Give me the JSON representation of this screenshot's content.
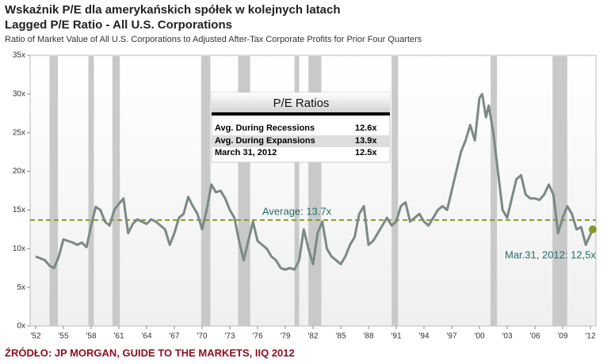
{
  "chart_data": {
    "type": "line",
    "title": "Wskaźnik P/E dla amerykańskich spółek w kolejnych latach",
    "subtitle": "Lagged P/E Ratio - All U.S. Corporations",
    "description": "Ratio of Market Value of All U.S. Corporations to Adjusted After-Tax Corporate Profits for Prior Four Quarters",
    "source": "ŹRÓDŁO: JP MORGAN, GUIDE TO THE MARKETS, IIQ 2012",
    "xlim": [
      1951.4,
      2012.6
    ],
    "ylim": [
      0,
      35
    ],
    "xticks": [
      {
        "value": 1952,
        "label": "'52"
      },
      {
        "value": 1955,
        "label": "'55"
      },
      {
        "value": 1958,
        "label": "'58"
      },
      {
        "value": 1961,
        "label": "'61"
      },
      {
        "value": 1964,
        "label": "'64"
      },
      {
        "value": 1967,
        "label": "'67"
      },
      {
        "value": 1970,
        "label": "'70"
      },
      {
        "value": 1973,
        "label": "'73"
      },
      {
        "value": 1976,
        "label": "'76"
      },
      {
        "value": 1979,
        "label": "'79"
      },
      {
        "value": 1982,
        "label": "'82"
      },
      {
        "value": 1985,
        "label": "'85"
      },
      {
        "value": 1988,
        "label": "'88"
      },
      {
        "value": 1991,
        "label": "'91"
      },
      {
        "value": 1994,
        "label": "'94"
      },
      {
        "value": 1997,
        "label": "'97"
      },
      {
        "value": 2000,
        "label": "'00"
      },
      {
        "value": 2003,
        "label": "'03"
      },
      {
        "value": 2006,
        "label": "'06"
      },
      {
        "value": 2009,
        "label": "'09"
      },
      {
        "value": 2012,
        "label": "'12"
      }
    ],
    "yticks": [
      {
        "value": 0,
        "label": "0x"
      },
      {
        "value": 5,
        "label": "5x"
      },
      {
        "value": 10,
        "label": "10x"
      },
      {
        "value": 15,
        "label": "15x"
      },
      {
        "value": 20,
        "label": "20x"
      },
      {
        "value": 25,
        "label": "25x"
      },
      {
        "value": 30,
        "label": "30x"
      },
      {
        "value": 35,
        "label": "35x"
      }
    ],
    "recessions": [
      [
        1953.5,
        1954.4
      ],
      [
        1957.7,
        1958.3
      ],
      [
        1960.3,
        1961.1
      ],
      [
        1969.9,
        1970.9
      ],
      [
        1973.9,
        1975.2
      ],
      [
        1980.0,
        1980.5
      ],
      [
        1981.5,
        1982.9
      ],
      [
        1990.5,
        1991.2
      ],
      [
        2001.2,
        2001.9
      ],
      [
        2007.9,
        2009.5
      ]
    ],
    "series": [
      {
        "name": "Lagged P/E Ratio",
        "color": "#7a8a86",
        "x": [
          1952,
          1953,
          1953.5,
          1954,
          1954.5,
          1955,
          1955.5,
          1956,
          1956.5,
          1957,
          1957.5,
          1958,
          1958.5,
          1959,
          1959.5,
          1960,
          1960.5,
          1961,
          1961.5,
          1962,
          1962.5,
          1963,
          1963.5,
          1964,
          1964.5,
          1965,
          1965.5,
          1966,
          1966.5,
          1967,
          1967.5,
          1968,
          1968.5,
          1969,
          1969.5,
          1970,
          1970.5,
          1971,
          1971.5,
          1972,
          1972.5,
          1973,
          1973.5,
          1974,
          1974.5,
          1975,
          1975.5,
          1976,
          1976.5,
          1977,
          1977.5,
          1978,
          1978.5,
          1979,
          1979.5,
          1980,
          1980.5,
          1981,
          1981.5,
          1982,
          1982.5,
          1983,
          1983.5,
          1984,
          1984.5,
          1985,
          1985.5,
          1986,
          1986.5,
          1987,
          1987.5,
          1988,
          1988.5,
          1989,
          1989.5,
          1990,
          1990.5,
          1991,
          1991.5,
          1992,
          1992.5,
          1993,
          1993.5,
          1994,
          1994.5,
          1995,
          1995.5,
          1996,
          1996.5,
          1997,
          1997.5,
          1998,
          1998.5,
          1999,
          1999.5,
          2000,
          2000.3,
          2000.7,
          2001,
          2001.5,
          2002,
          2002.5,
          2003,
          2003.5,
          2004,
          2004.5,
          2005,
          2005.5,
          2006,
          2006.5,
          2007,
          2007.5,
          2008,
          2008.5,
          2009,
          2009.5,
          2010,
          2010.5,
          2011,
          2011.5,
          2012.25
        ],
        "values": [
          9.0,
          8.5,
          7.8,
          7.5,
          9,
          11.2,
          11,
          10.8,
          10.5,
          10.8,
          10.2,
          13,
          15.4,
          15,
          13.5,
          13,
          15,
          15.8,
          16.5,
          12,
          13.2,
          13.8,
          13.5,
          13.2,
          13.8,
          13.5,
          13,
          12.5,
          10.5,
          12,
          14,
          14.5,
          16.7,
          15.5,
          14.5,
          12.5,
          15,
          18.3,
          17.3,
          17.5,
          16.5,
          15,
          14,
          11,
          8.5,
          11,
          13.5,
          11,
          10.5,
          10,
          9,
          8.5,
          7.5,
          7.3,
          7.5,
          7.3,
          8.5,
          12.5,
          10,
          8,
          12,
          13.5,
          10,
          9,
          8.5,
          8,
          9,
          10.5,
          11.5,
          14.5,
          15.5,
          10.5,
          11,
          12,
          13,
          14,
          13,
          13.5,
          15.5,
          16,
          13.5,
          14,
          14.5,
          13.5,
          13,
          14,
          15,
          15.5,
          15,
          17.5,
          20,
          22.5,
          24,
          26,
          24,
          29.5,
          30,
          27,
          28.5,
          25,
          20,
          15,
          14,
          16.5,
          19,
          19.5,
          17,
          16.5,
          16.5,
          16.3,
          17,
          18.3,
          17,
          12,
          14,
          15.5,
          14.5,
          12.5,
          12.8,
          10.5,
          12.5
        ]
      }
    ],
    "average": 13.7,
    "average_label": "Average: 13.7x",
    "end_label": "Mar.31, 2012: 12,5x",
    "table": {
      "title": "P/E Ratios",
      "rows": [
        [
          "Avg. During Recessions",
          "12.6x"
        ],
        [
          "Avg. During Expansions",
          "13.9x"
        ],
        [
          "March 31, 2012",
          "12.5x"
        ]
      ]
    }
  }
}
